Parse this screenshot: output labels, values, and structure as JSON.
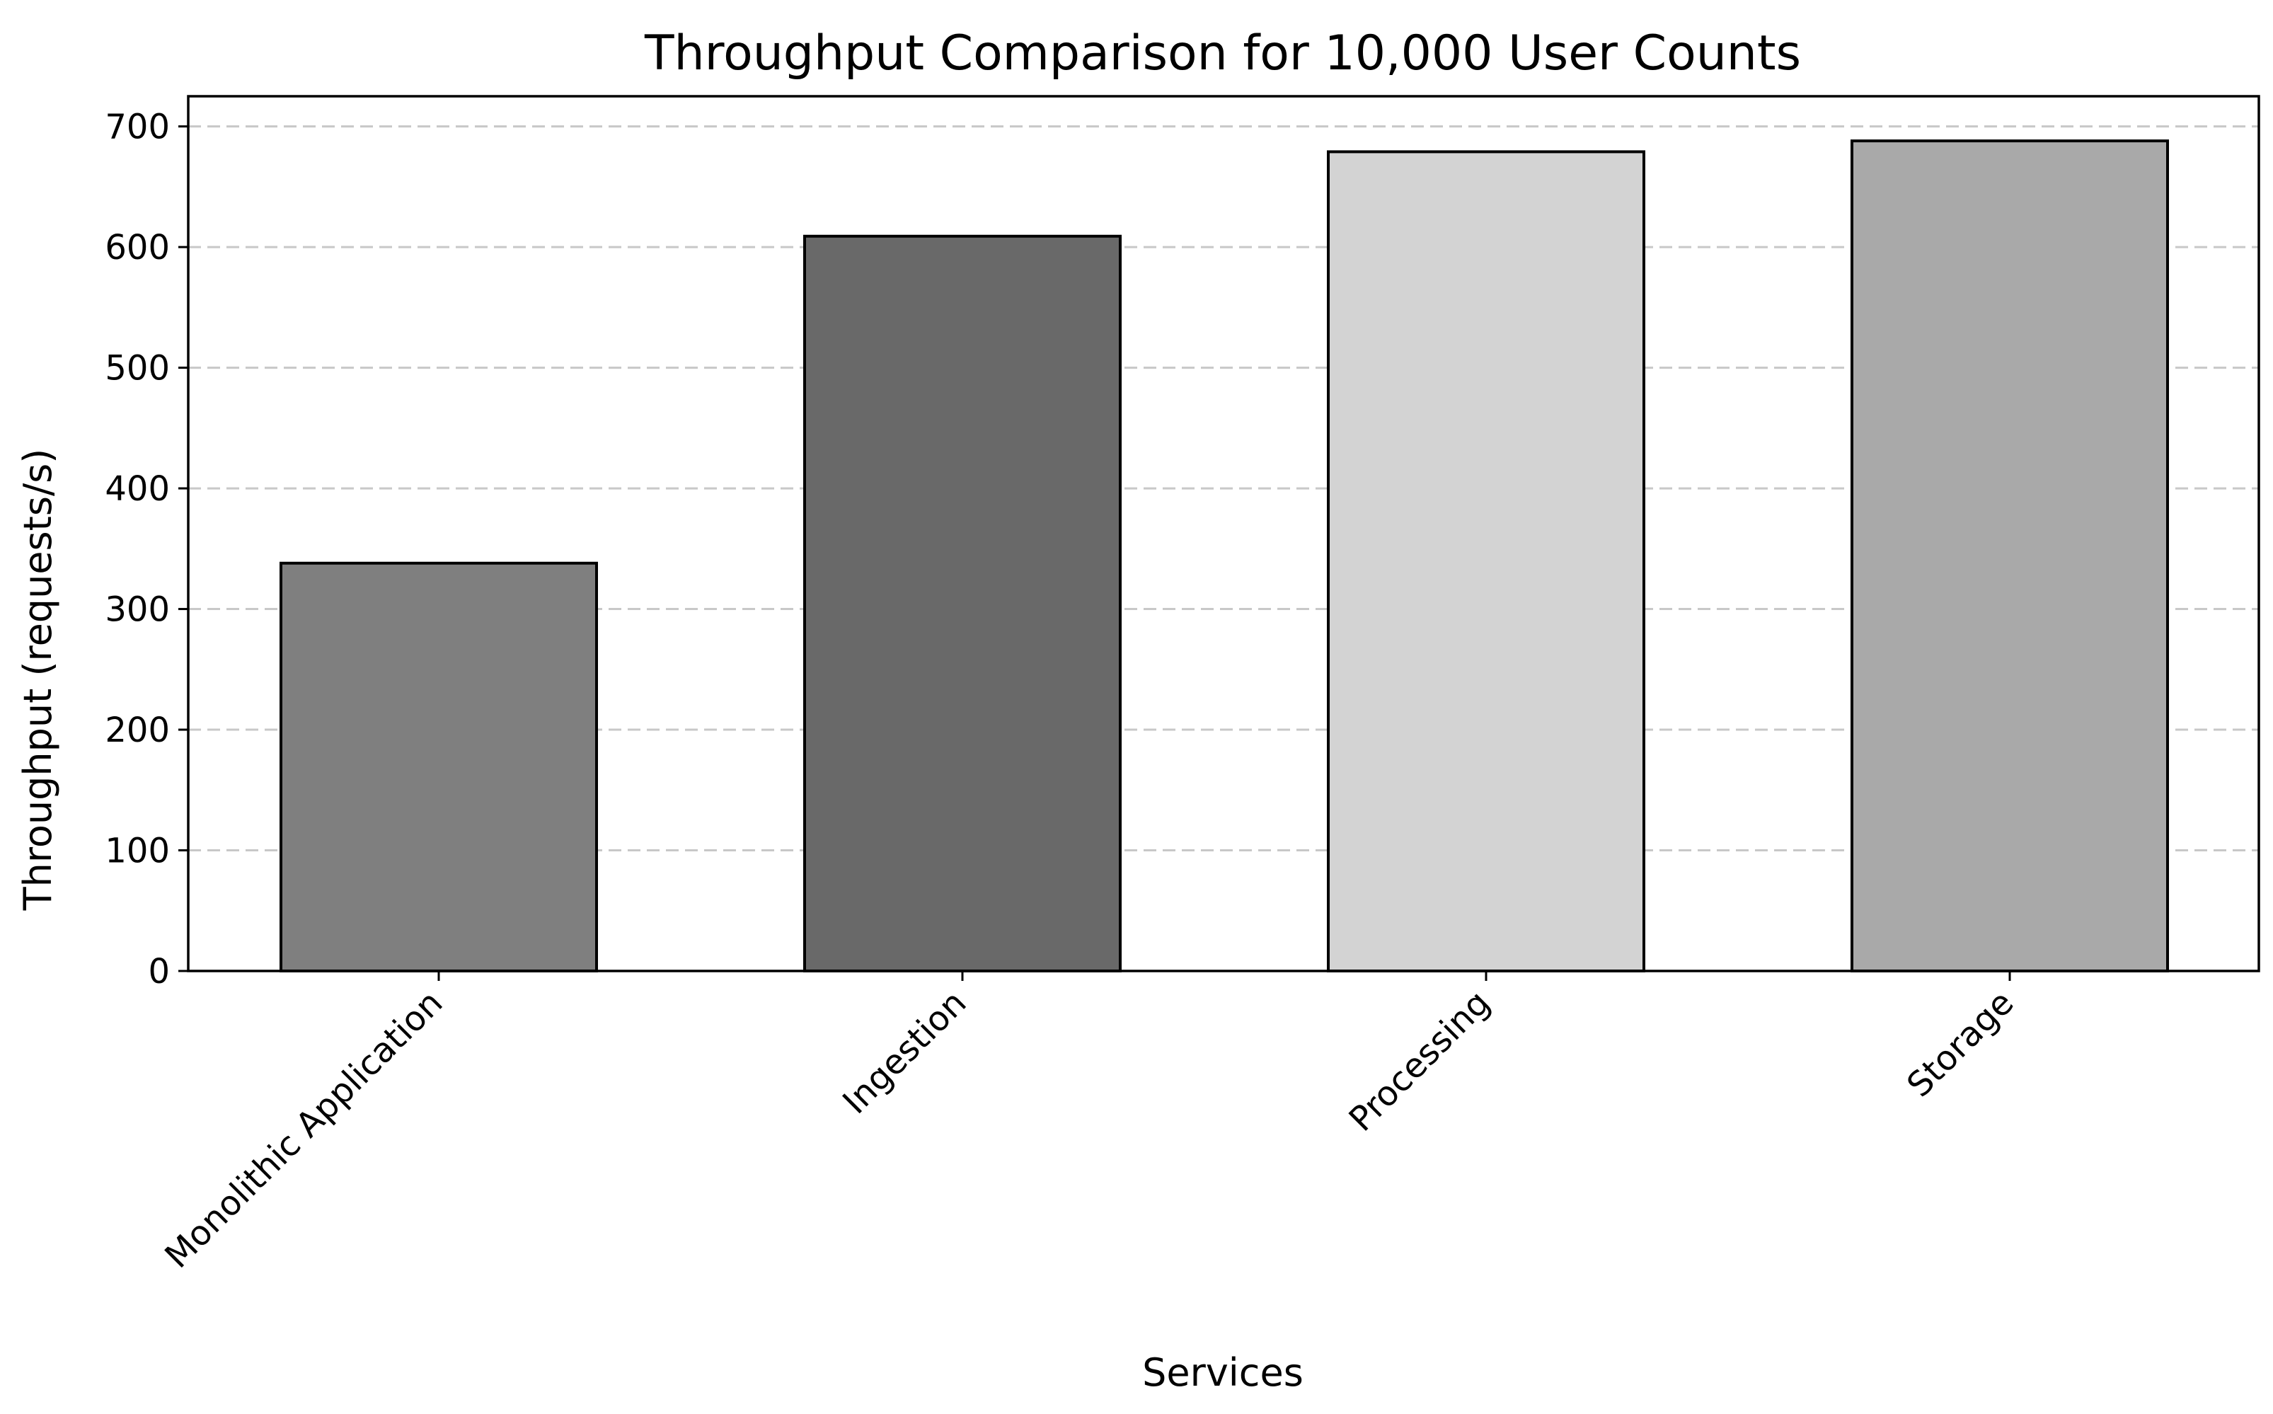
{
  "chart_data": {
    "type": "bar",
    "title": "Throughput Comparison for 10,000 User Counts",
    "xlabel": "Services",
    "ylabel": "Throughput (requests/s)",
    "categories": [
      "Monolithic Application",
      "Ingestion",
      "Processing",
      "Storage"
    ],
    "values": [
      338,
      609,
      679,
      688
    ],
    "colors": [
      "#7f7f7f",
      "#696969",
      "#d3d3d3",
      "#a9a9a9"
    ],
    "edge_color": "#000000",
    "ylim": [
      0,
      725
    ],
    "yticks": [
      0,
      100,
      200,
      300,
      400,
      500,
      600,
      700
    ],
    "grid": "y-dashed",
    "legend": "none"
  }
}
